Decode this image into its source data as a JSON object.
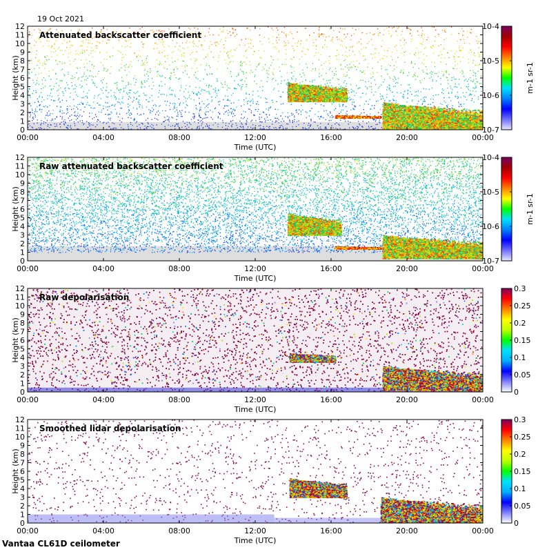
{
  "header": {
    "date": "19 Oct 2021"
  },
  "footer": {
    "site_label": "Vantaa CL61D ceilometer"
  },
  "chart_data": [
    {
      "type": "heatmap",
      "title": "Attenuated backscatter coefficient",
      "xlabel": "Time (UTC)",
      "ylabel": "Height (km)",
      "xticks": [
        "00:00",
        "04:00",
        "08:00",
        "12:00",
        "16:00",
        "20:00",
        "00:00"
      ],
      "xlim_hours": [
        0,
        24
      ],
      "ylim": [
        0,
        12
      ],
      "yticks": [
        0,
        1,
        2,
        3,
        4,
        5,
        6,
        7,
        8,
        9,
        10,
        11,
        12
      ],
      "colorbar": {
        "scale": "log",
        "range": [
          1e-07,
          0.0001
        ],
        "ticks": [
          "10-7",
          "10-6",
          "10-5",
          "10-4"
        ],
        "tick_values": [
          1e-07,
          1e-06,
          1e-05,
          0.0001
        ],
        "unit": "m-1 sr-1"
      },
      "features": [
        {
          "name": "mid-level cloud",
          "start_hour": 13.7,
          "end_hour": 16.8,
          "bottom_km": 3.3,
          "top_km": 5.5
        },
        {
          "name": "low cloud layer",
          "start_hour": 18.7,
          "end_hour": 24,
          "bottom_km": 0.1,
          "top_km": 3.2
        },
        {
          "name": "thin layer",
          "start_hour": 16.2,
          "end_hour": 18.6,
          "bottom_km": 1.4,
          "top_km": 1.7
        }
      ]
    },
    {
      "type": "heatmap",
      "title": "Raw attenuated backscatter coefficient",
      "xlabel": "Time (UTC)",
      "ylabel": "Height (km)",
      "xticks": [
        "00:00",
        "04:00",
        "08:00",
        "12:00",
        "16:00",
        "20:00",
        "00:00"
      ],
      "xlim_hours": [
        0,
        24
      ],
      "ylim": [
        0,
        12
      ],
      "yticks": [
        0,
        1,
        2,
        3,
        4,
        5,
        6,
        7,
        8,
        9,
        10,
        11,
        12
      ],
      "colorbar": {
        "scale": "log",
        "range": [
          1e-07,
          0.0001
        ],
        "ticks": [
          "10-7",
          "10-6",
          "10-5",
          "10-4"
        ],
        "tick_values": [
          1e-07,
          1e-06,
          1e-05,
          0.0001
        ],
        "unit": "m-1 sr-1"
      },
      "features": [
        {
          "name": "mid-level cloud",
          "start_hour": 13.7,
          "end_hour": 16.5,
          "bottom_km": 3.0,
          "top_km": 5.5
        },
        {
          "name": "low cloud layer",
          "start_hour": 18.7,
          "end_hour": 24,
          "bottom_km": 0.3,
          "top_km": 3.0
        },
        {
          "name": "thin layer",
          "start_hour": 16.2,
          "end_hour": 18.6,
          "bottom_km": 1.4,
          "top_km": 1.7
        }
      ]
    },
    {
      "type": "heatmap",
      "title": "Raw depolarisation",
      "xlabel": "Time (UTC)",
      "ylabel": "Height (km)",
      "xticks": [
        "00:00",
        "04:00",
        "08:00",
        "12:00",
        "16:00",
        "20:00",
        "00:00"
      ],
      "xlim_hours": [
        0,
        24
      ],
      "ylim": [
        0,
        12
      ],
      "yticks": [
        0,
        1,
        2,
        3,
        4,
        5,
        6,
        7,
        8,
        9,
        10,
        11,
        12
      ],
      "colorbar": {
        "scale": "linear",
        "range": [
          0,
          0.3
        ],
        "ticks": [
          "0",
          "0.05",
          "0.1",
          "0.15",
          "0.2",
          "0.25",
          "0.3"
        ],
        "tick_values": [
          0,
          0.05,
          0.1,
          0.15,
          0.2,
          0.25,
          0.3
        ]
      },
      "features": [
        {
          "name": "mid-level cloud",
          "start_hour": 13.8,
          "end_hour": 16.2,
          "bottom_km": 3.5,
          "top_km": 4.5
        },
        {
          "name": "low cloud layer",
          "start_hour": 18.7,
          "end_hour": 24,
          "bottom_km": 0.2,
          "top_km": 3.0
        }
      ]
    },
    {
      "type": "heatmap",
      "title": "Smoothed lidar depolarisation",
      "xlabel": "Time (UTC)",
      "ylabel": "Height (km)",
      "xticks": [
        "00:00",
        "04:00",
        "08:00",
        "12:00",
        "16:00",
        "20:00",
        "00:00"
      ],
      "xlim_hours": [
        0,
        24
      ],
      "ylim": [
        0,
        12
      ],
      "yticks": [
        0,
        1,
        2,
        3,
        4,
        5,
        6,
        7,
        8,
        9,
        10,
        11,
        12
      ],
      "colorbar": {
        "scale": "linear",
        "range": [
          0,
          0.3
        ],
        "ticks": [
          "0",
          "0.05",
          "0.1",
          "0.15",
          "0.2",
          "0.25",
          "0.3"
        ],
        "tick_values": [
          0,
          0.05,
          0.1,
          0.15,
          0.2,
          0.25,
          0.3
        ]
      },
      "features": [
        {
          "name": "mid-level cloud",
          "start_hour": 13.8,
          "end_hour": 16.8,
          "bottom_km": 3.0,
          "top_km": 5.2
        },
        {
          "name": "low cloud layer",
          "start_hour": 18.6,
          "end_hour": 24,
          "bottom_km": 0.0,
          "top_km": 3.0
        }
      ]
    }
  ]
}
